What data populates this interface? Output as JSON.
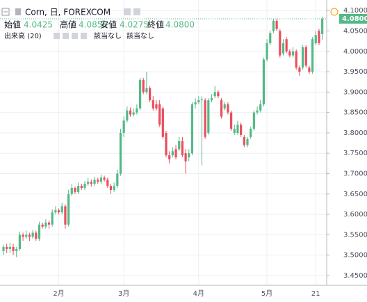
{
  "chart_data": {
    "type": "candlestick",
    "title": "Corn, 日, FOREXCOM",
    "ohlc_legend": [
      {
        "name": "始値",
        "value": 4.0425,
        "label": "4.0425"
      },
      {
        "name": "高値",
        "value": 4.085,
        "label": "4.0850"
      },
      {
        "name": "安値",
        "value": 4.0275,
        "label": "4.0275"
      },
      {
        "name": "終値",
        "value": 4.08,
        "label": "4.0800"
      }
    ],
    "volume_label": "出来高 (20)",
    "volume_values": [
      "該当なし",
      "該当なし"
    ],
    "up_color": "#53b987",
    "down_color": "#eb4d5c",
    "grid": true,
    "last_price": {
      "value": 4.08,
      "label": "4.0800"
    },
    "ylim": [
      3.426,
      4.126
    ],
    "yticks": [
      {
        "value": 3.45,
        "label": "3.4500"
      },
      {
        "value": 3.5,
        "label": "3.5000"
      },
      {
        "value": 3.55,
        "label": "3.5500"
      },
      {
        "value": 3.6,
        "label": "3.6000"
      },
      {
        "value": 3.65,
        "label": "3.6500"
      },
      {
        "value": 3.7,
        "label": "3.7000"
      },
      {
        "value": 3.75,
        "label": "3.7500"
      },
      {
        "value": 3.8,
        "label": "3.8000"
      },
      {
        "value": 3.85,
        "label": "3.8500"
      },
      {
        "value": 3.9,
        "label": "3.9000"
      },
      {
        "value": 3.95,
        "label": "3.9500"
      },
      {
        "value": 4.0,
        "label": "4.0000"
      },
      {
        "value": 4.05,
        "label": "4.0500"
      },
      {
        "value": 4.1,
        "label": "4.1000"
      }
    ],
    "categories": [
      null,
      null,
      null,
      null,
      null,
      null,
      null,
      null,
      null,
      null,
      null,
      null,
      null,
      null,
      null,
      null,
      null,
      "2月",
      null,
      null,
      null,
      null,
      null,
      null,
      null,
      null,
      null,
      null,
      null,
      null,
      null,
      null,
      null,
      null,
      null,
      null,
      null,
      "3月",
      null,
      null,
      null,
      null,
      null,
      null,
      null,
      null,
      null,
      null,
      null,
      null,
      null,
      null,
      null,
      null,
      null,
      null,
      null,
      null,
      null,
      null,
      "4月",
      null,
      null,
      null,
      null,
      null,
      null,
      null,
      null,
      null,
      null,
      null,
      null,
      null,
      null,
      null,
      null,
      null,
      null,
      null,
      null,
      "5月",
      null,
      null,
      null,
      null,
      null,
      null,
      null,
      null,
      null,
      null,
      null,
      null,
      null,
      null,
      "21",
      null,
      null
    ],
    "open": [
      3.51,
      3.52,
      3.515,
      3.52,
      3.51,
      3.515,
      3.55,
      3.545,
      3.55,
      3.545,
      3.555,
      3.54,
      3.575,
      3.57,
      3.58,
      3.575,
      3.605,
      3.61,
      3.605,
      3.62,
      3.575,
      3.65,
      3.665,
      3.655,
      3.67,
      3.665,
      3.675,
      3.68,
      3.675,
      3.685,
      3.68,
      3.69,
      3.685,
      3.67,
      3.66,
      3.67,
      3.7,
      3.8,
      3.83,
      3.855,
      3.845,
      3.85,
      3.86,
      3.93,
      3.9,
      3.91,
      3.88,
      3.87,
      3.87,
      3.86,
      3.8,
      3.745,
      3.745,
      3.76,
      3.76,
      3.78,
      3.75,
      3.74,
      3.75,
      3.87,
      3.875,
      3.88,
      3.88,
      3.8,
      3.88,
      3.89,
      3.9,
      3.88,
      3.86,
      3.87,
      3.85,
      3.8,
      3.8,
      3.82,
      3.79,
      3.77,
      3.79,
      3.81,
      3.85,
      3.855,
      3.87,
      3.98,
      4.02,
      4.05,
      4.075,
      4.05,
      3.995,
      4.03,
      4.0,
      3.99,
      4.0,
      3.96,
      3.96,
      4.01,
      3.96,
      3.95,
      4.02,
      4.05,
      4.0425
    ],
    "high": [
      3.525,
      3.528,
      3.53,
      3.528,
      3.52,
      3.558,
      3.555,
      3.56,
      3.555,
      3.562,
      3.56,
      3.582,
      3.58,
      3.588,
      3.585,
      3.612,
      3.62,
      3.615,
      3.628,
      3.625,
      3.66,
      3.675,
      3.668,
      3.678,
      3.675,
      3.682,
      3.69,
      3.685,
      3.692,
      3.69,
      3.698,
      3.695,
      3.69,
      3.675,
      3.678,
      3.71,
      3.81,
      3.84,
      3.865,
      3.862,
      3.86,
      3.87,
      3.935,
      3.935,
      3.95,
      3.915,
      3.89,
      3.88,
      3.88,
      3.865,
      3.805,
      3.755,
      3.765,
      3.77,
      3.79,
      3.79,
      3.76,
      3.76,
      3.875,
      3.885,
      3.89,
      3.89,
      3.885,
      3.885,
      3.895,
      3.915,
      3.905,
      3.885,
      3.875,
      3.875,
      3.855,
      3.82,
      3.83,
      3.825,
      3.795,
      3.79,
      3.815,
      3.855,
      3.865,
      3.88,
      3.985,
      4.03,
      4.05,
      4.08,
      4.08,
      4.055,
      4.03,
      4.035,
      4.005,
      4.01,
      4.005,
      3.965,
      4.015,
      4.015,
      3.965,
      4.035,
      4.05,
      4.055,
      4.085
    ],
    "low": [
      3.5,
      3.505,
      3.505,
      3.5,
      3.495,
      3.51,
      3.535,
      3.54,
      3.535,
      3.54,
      3.535,
      3.535,
      3.565,
      3.565,
      3.565,
      3.57,
      3.6,
      3.6,
      3.6,
      3.565,
      3.57,
      3.645,
      3.65,
      3.65,
      3.66,
      3.66,
      3.67,
      3.668,
      3.67,
      3.675,
      3.675,
      3.68,
      3.665,
      3.65,
      3.655,
      3.665,
      3.695,
      3.79,
      3.825,
      3.84,
      3.84,
      3.845,
      3.855,
      3.895,
      3.895,
      3.875,
      3.855,
      3.855,
      3.815,
      3.785,
      3.74,
      3.725,
      3.74,
      3.735,
      3.755,
      3.74,
      3.7,
      3.73,
      3.745,
      3.86,
      3.87,
      3.72,
      3.785,
      3.795,
      3.875,
      3.885,
      3.885,
      3.835,
      3.855,
      3.845,
      3.805,
      3.795,
      3.795,
      3.79,
      3.765,
      3.765,
      3.785,
      3.805,
      3.845,
      3.85,
      3.865,
      3.975,
      4.015,
      4.045,
      4.05,
      3.985,
      3.99,
      3.995,
      3.985,
      3.985,
      3.955,
      3.94,
      3.955,
      3.96,
      3.945,
      3.945,
      4.015,
      4.015,
      4.0275
    ],
    "close": [
      3.52,
      3.515,
      3.52,
      3.51,
      3.515,
      3.55,
      3.545,
      3.55,
      3.545,
      3.555,
      3.54,
      3.575,
      3.57,
      3.58,
      3.575,
      3.605,
      3.61,
      3.605,
      3.62,
      3.575,
      3.65,
      3.665,
      3.655,
      3.67,
      3.665,
      3.675,
      3.68,
      3.675,
      3.685,
      3.68,
      3.69,
      3.685,
      3.67,
      3.66,
      3.67,
      3.7,
      3.8,
      3.83,
      3.855,
      3.845,
      3.85,
      3.86,
      3.93,
      3.9,
      3.91,
      3.88,
      3.86,
      3.86,
      3.82,
      3.79,
      3.745,
      3.735,
      3.755,
      3.74,
      3.78,
      3.745,
      3.73,
      3.75,
      3.87,
      3.875,
      3.88,
      3.882,
      3.79,
      3.88,
      3.885,
      3.9,
      3.89,
      3.84,
      3.87,
      3.85,
      3.81,
      3.81,
      3.82,
      3.795,
      3.77,
      3.785,
      3.81,
      3.85,
      3.855,
      3.87,
      3.98,
      4.02,
      4.045,
      4.075,
      4.055,
      3.99,
      4.02,
      4.0,
      3.99,
      4.0,
      3.96,
      3.95,
      4.01,
      3.965,
      3.95,
      4.03,
      4.04,
      4.02,
      4.08
    ]
  }
}
